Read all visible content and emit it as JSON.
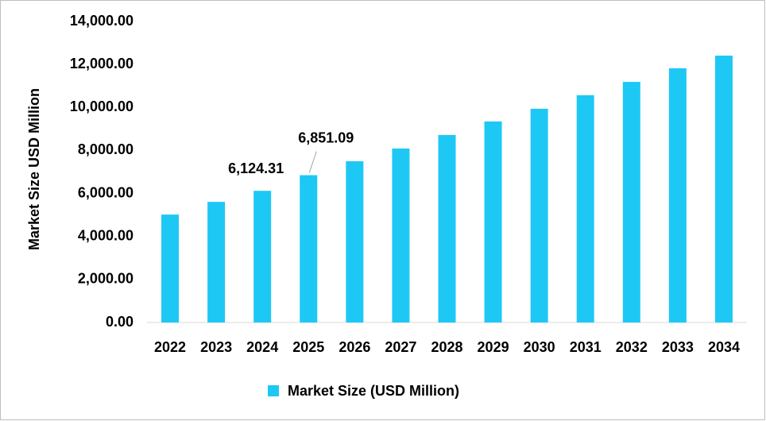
{
  "chart_data": {
    "type": "bar",
    "y_axis_label": "Market Size USD Million",
    "categories": [
      "2022",
      "2023",
      "2024",
      "2025",
      "2026",
      "2027",
      "2028",
      "2029",
      "2030",
      "2031",
      "2032",
      "2033",
      "2034"
    ],
    "series": [
      {
        "name": "Market Size (USD Million)",
        "color": "#1ec8f5",
        "values": [
          5020,
          5610,
          6124.31,
          6851.09,
          7500,
          8090,
          8720,
          9350,
          9940,
          10570,
          11190,
          11820,
          12410
        ],
        "value_labels": [
          null,
          null,
          "6,124.31",
          "6,851.09",
          null,
          null,
          null,
          null,
          null,
          null,
          null,
          null,
          null
        ]
      }
    ],
    "ylim": [
      0,
      14000
    ],
    "yticks": [
      {
        "value": 0,
        "label": "0.00"
      },
      {
        "value": 2000,
        "label": "2,000.00"
      },
      {
        "value": 4000,
        "label": "4,000.00"
      },
      {
        "value": 6000,
        "label": "6,000.00"
      },
      {
        "value": 8000,
        "label": "8,000.00"
      },
      {
        "value": 10000,
        "label": "10,000.00"
      },
      {
        "value": 12000,
        "label": "12,000.00"
      },
      {
        "value": 14000,
        "label": "14,000.00"
      }
    ],
    "grid": false,
    "legend": "bottom"
  }
}
